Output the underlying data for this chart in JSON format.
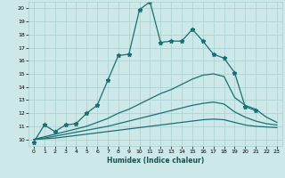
{
  "xlabel": "Humidex (Indice chaleur)",
  "ylabel": "",
  "xlim": [
    -0.5,
    23.5
  ],
  "ylim": [
    9.5,
    20.5
  ],
  "yticks": [
    10,
    11,
    12,
    13,
    14,
    15,
    16,
    17,
    18,
    19,
    20
  ],
  "xticks": [
    0,
    1,
    2,
    3,
    4,
    5,
    6,
    7,
    8,
    9,
    10,
    11,
    12,
    13,
    14,
    15,
    16,
    17,
    18,
    19,
    20,
    21,
    22,
    23
  ],
  "bg_color": "#cce8e8",
  "grid_color": "#aacfcf",
  "line_color": "#1a7070",
  "lines": [
    {
      "x": [
        0,
        1,
        2,
        3,
        4,
        5,
        6,
        7,
        8,
        9,
        10,
        11,
        12,
        13,
        14,
        15,
        16,
        17,
        18,
        19,
        20,
        21
      ],
      "y": [
        9.8,
        11.1,
        10.6,
        11.1,
        11.2,
        12.0,
        12.6,
        14.5,
        16.4,
        16.5,
        19.9,
        20.5,
        17.4,
        17.5,
        17.5,
        18.4,
        17.5,
        16.5,
        16.2,
        15.1,
        12.5,
        12.2
      ],
      "marker": "*",
      "markersize": 3.5,
      "linewidth": 0.9
    },
    {
      "x": [
        0,
        1,
        2,
        3,
        4,
        5,
        6,
        7,
        8,
        9,
        10,
        11,
        12,
        13,
        14,
        15,
        16,
        17,
        18,
        19,
        20,
        21,
        22,
        23
      ],
      "y": [
        10.0,
        10.2,
        10.4,
        10.6,
        10.8,
        11.0,
        11.3,
        11.6,
        12.0,
        12.3,
        12.7,
        13.1,
        13.5,
        13.8,
        14.2,
        14.6,
        14.9,
        15.0,
        14.8,
        13.2,
        12.6,
        12.3,
        11.7,
        11.3
      ],
      "marker": "None",
      "markersize": 0,
      "linewidth": 0.9
    },
    {
      "x": [
        0,
        1,
        2,
        3,
        4,
        5,
        6,
        7,
        8,
        9,
        10,
        11,
        12,
        13,
        14,
        15,
        16,
        17,
        18,
        19,
        20,
        21,
        22,
        23
      ],
      "y": [
        10.0,
        10.1,
        10.25,
        10.4,
        10.55,
        10.7,
        10.85,
        11.0,
        11.2,
        11.4,
        11.6,
        11.8,
        12.0,
        12.2,
        12.4,
        12.6,
        12.75,
        12.85,
        12.7,
        12.1,
        11.7,
        11.4,
        11.2,
        11.1
      ],
      "marker": "None",
      "markersize": 0,
      "linewidth": 0.9
    },
    {
      "x": [
        0,
        1,
        2,
        3,
        4,
        5,
        6,
        7,
        8,
        9,
        10,
        11,
        12,
        13,
        14,
        15,
        16,
        17,
        18,
        19,
        20,
        21,
        22,
        23
      ],
      "y": [
        10.0,
        10.05,
        10.1,
        10.2,
        10.3,
        10.4,
        10.5,
        10.6,
        10.7,
        10.8,
        10.9,
        11.0,
        11.1,
        11.2,
        11.3,
        11.4,
        11.5,
        11.55,
        11.5,
        11.3,
        11.1,
        11.0,
        10.95,
        10.9
      ],
      "marker": "None",
      "markersize": 0,
      "linewidth": 0.9
    }
  ]
}
